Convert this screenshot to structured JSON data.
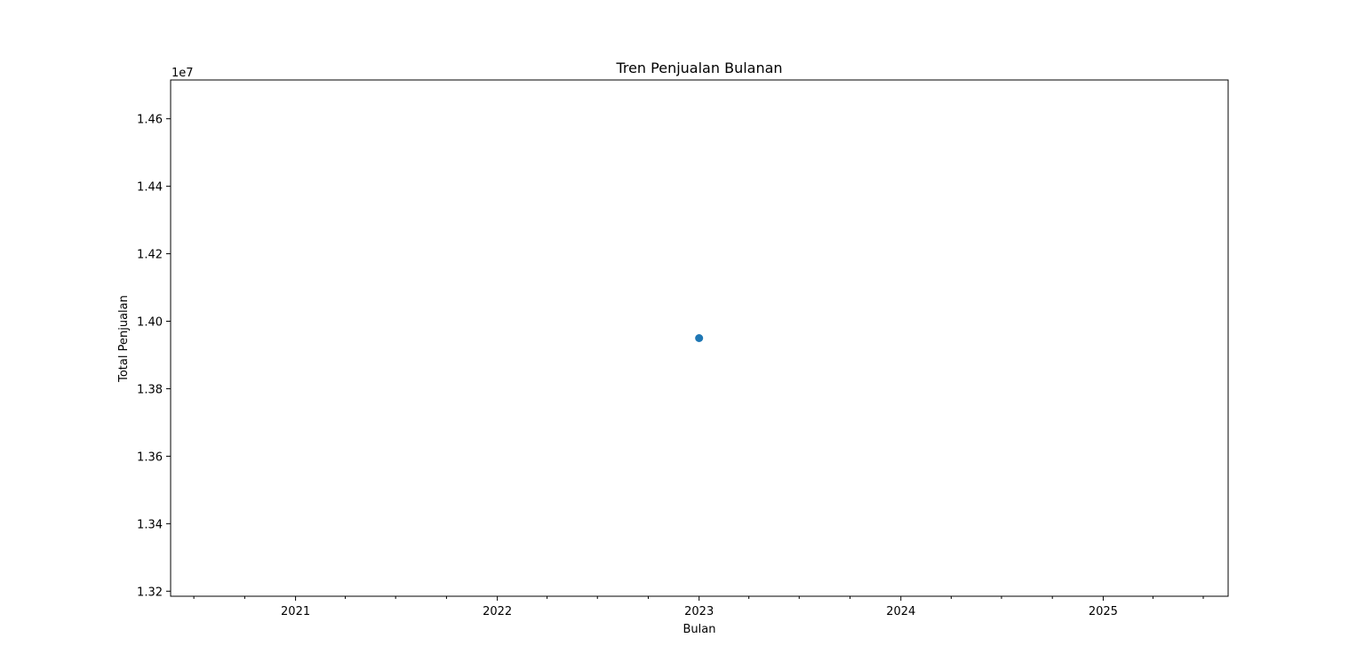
{
  "chart_data": {
    "type": "line",
    "title": "Tren Penjualan Bulanan",
    "xlabel": "Bulan",
    "ylabel": "Total Penjualan",
    "y_offset_label": "1e7",
    "x_tick_labels": [
      "2021",
      "2022",
      "2023",
      "2024",
      "2025"
    ],
    "y_tick_labels": [
      "1.32",
      "1.34",
      "1.36",
      "1.38",
      "1.40",
      "1.42",
      "1.44",
      "1.46"
    ],
    "xlim": [
      "2020-05-20",
      "2025-08-15"
    ],
    "ylim": [
      13185000,
      14715000
    ],
    "grid": false,
    "series": [
      {
        "color": "#1f77b4",
        "marker": "circle",
        "points": [
          {
            "x": "2023-01-01",
            "y": 13950000
          }
        ]
      }
    ]
  }
}
